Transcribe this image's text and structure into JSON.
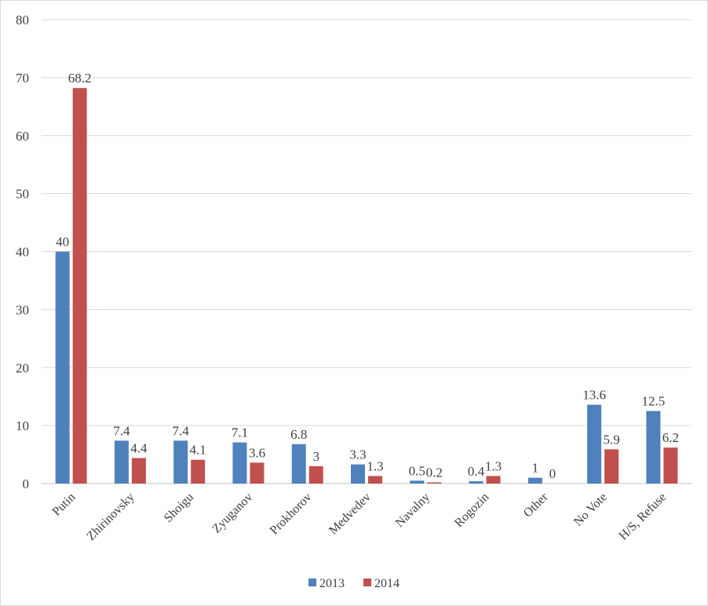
{
  "chart_data": {
    "type": "bar",
    "title": "",
    "xlabel": "",
    "ylabel": "",
    "ylim": [
      0,
      80
    ],
    "yticks": [
      0,
      10,
      20,
      30,
      40,
      50,
      60,
      70,
      80
    ],
    "grid": true,
    "legend_position": "bottom",
    "categories": [
      "Putin",
      "Zhirinovsky",
      "Shoigu",
      "Zyuganov",
      "Prokhorov",
      "Medvedev",
      "Navalny",
      "Rogozin",
      "Other",
      "No Vote",
      "H/S, Refuse"
    ],
    "series": [
      {
        "name": "2013",
        "color": "#4F81BD",
        "values": [
          40,
          7.4,
          7.4,
          7.1,
          6.8,
          3.3,
          0.5,
          0.4,
          1,
          13.6,
          12.5
        ]
      },
      {
        "name": "2014",
        "color": "#C0504D",
        "values": [
          68.2,
          4.4,
          4.1,
          3.6,
          3,
          1.3,
          0.2,
          1.3,
          0,
          5.9,
          6.2
        ]
      }
    ]
  }
}
